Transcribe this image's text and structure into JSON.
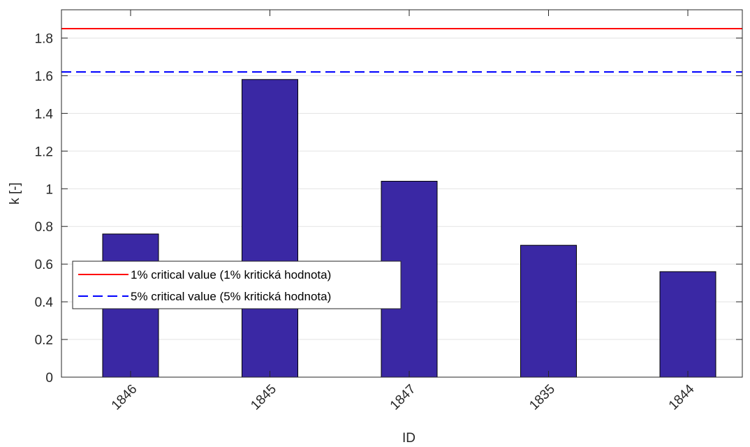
{
  "chart_data": {
    "type": "bar",
    "categories": [
      "1846",
      "1845",
      "1847",
      "1835",
      "1844"
    ],
    "values": [
      0.76,
      1.58,
      1.04,
      0.7,
      0.56
    ],
    "xlabel": "ID",
    "ylabel": "k [-]",
    "ylim": [
      0,
      1.95
    ],
    "yticks": [
      0,
      0.2,
      0.4,
      0.6,
      0.8,
      1,
      1.2,
      1.4,
      1.6,
      1.8
    ],
    "ytick_labels": [
      "0",
      "0.2",
      "0.4",
      "0.6",
      "0.8",
      "1",
      "1.2",
      "1.4",
      "1.6",
      "1.8"
    ],
    "grid": "horizontal",
    "bar_color": "#3A28A4",
    "reference_lines": [
      {
        "name": "1% critical value (1% kritická hodnota)",
        "value": 1.85,
        "color": "#FF0000",
        "style": "solid"
      },
      {
        "name": "5% critical value (5% kritická hodnota)",
        "value": 1.62,
        "color": "#0000FF",
        "style": "dashed"
      }
    ],
    "legend_position": "lower-left"
  }
}
